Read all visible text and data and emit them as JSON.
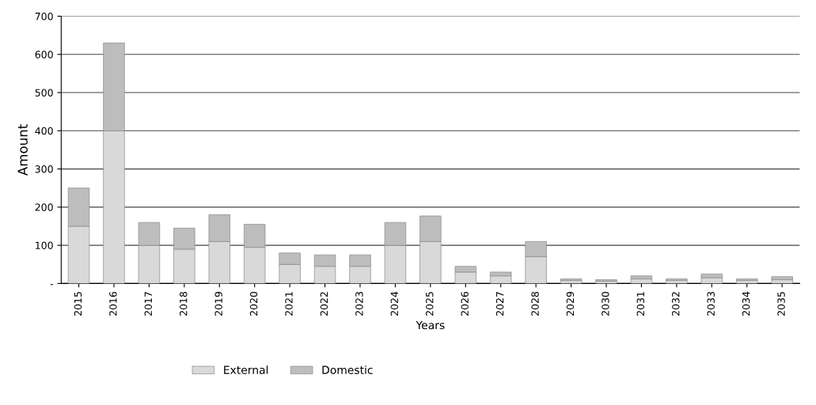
{
  "chart_data": {
    "type": "bar",
    "stacked": true,
    "xlabel": "Years",
    "ylabel": "Amount",
    "categories": [
      "2015",
      "2016",
      "2017",
      "2018",
      "2019",
      "2020",
      "2021",
      "2022",
      "2023",
      "2024",
      "2025",
      "2026",
      "2027",
      "2028",
      "2029",
      "2030",
      "2031",
      "2032",
      "2033",
      "2034",
      "2035"
    ],
    "series": [
      {
        "name": "External",
        "color": "#d9d9d9",
        "values": [
          150,
          400,
          100,
          90,
          110,
          95,
          50,
          45,
          45,
          100,
          110,
          30,
          20,
          70,
          8,
          6,
          12,
          8,
          15,
          8,
          10
        ]
      },
      {
        "name": "Domestic",
        "color": "#bdbdbd",
        "values": [
          100,
          230,
          60,
          55,
          70,
          60,
          30,
          30,
          30,
          60,
          67,
          15,
          10,
          40,
          4,
          4,
          8,
          4,
          10,
          4,
          8
        ]
      }
    ],
    "ylim": [
      0,
      700
    ],
    "yticks": [
      {
        "value": 0,
        "label": "-"
      },
      100,
      200,
      300,
      400,
      500,
      600,
      700
    ],
    "grid": "y",
    "legend": "bottom"
  }
}
